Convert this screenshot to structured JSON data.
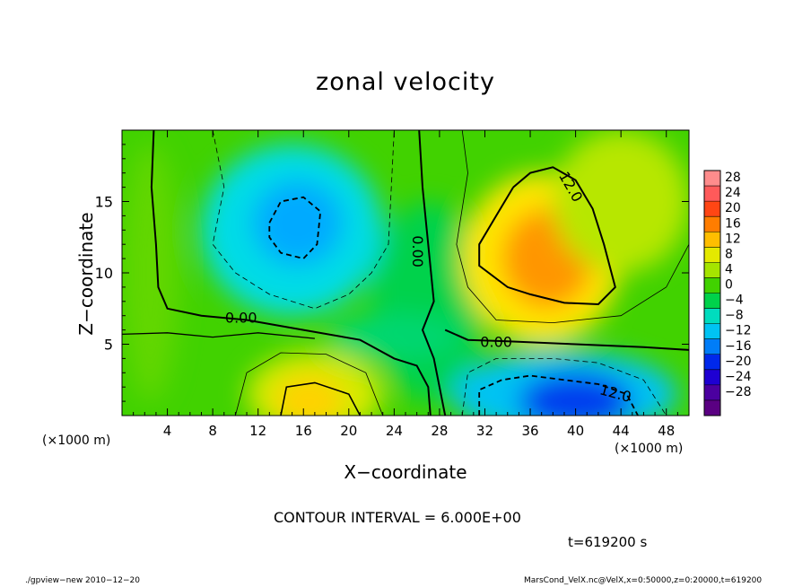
{
  "chart_data": {
    "type": "heatmap",
    "title": "zonal velocity",
    "xlabel": "X−coordinate",
    "ylabel": "Z−coordinate",
    "x_unit_label": "(×1000 m)",
    "xlim": [
      0,
      50
    ],
    "ylim": [
      0,
      20
    ],
    "x_ticks": [
      4,
      8,
      12,
      16,
      20,
      24,
      28,
      32,
      36,
      40,
      44,
      48
    ],
    "y_ticks": [
      5,
      10,
      15
    ],
    "colorbar": {
      "levels": [
        28,
        24,
        20,
        16,
        12,
        8,
        4,
        0,
        -4,
        -8,
        -12,
        -16,
        -20,
        -24,
        -28
      ],
      "labels": [
        "28",
        "24",
        "20",
        "16",
        "12",
        "8",
        "4",
        "0",
        "−4",
        "−8",
        "−12",
        "−16",
        "−20",
        "−24",
        "−28"
      ]
    },
    "contour_labels": [
      {
        "text": "0.00",
        "x": 10.5,
        "z": 6.8
      },
      {
        "text": "0.00",
        "x": 26.0,
        "z": 11.5,
        "rotate": 90
      },
      {
        "text": "0.00",
        "x": 33.0,
        "z": 5.1
      },
      {
        "text": "12.0",
        "x": 39.5,
        "z": 16.0,
        "rotate": 60
      },
      {
        "text": "12.0",
        "x": 43.5,
        "z": 1.5,
        "rotate": 15
      }
    ],
    "features": [
      {
        "kind": "min",
        "x": 15.5,
        "z": 13.5,
        "value": -13
      },
      {
        "kind": "max",
        "x": 37.5,
        "z": 11.0,
        "value": 17
      },
      {
        "kind": "min",
        "x": 39.5,
        "z": 1.2,
        "value": -18
      },
      {
        "kind": "max",
        "x": 16.5,
        "z": 1.0,
        "value": 13
      }
    ],
    "contour_interval": "CONTOUR INTERVAL = 6.000E+00",
    "time": "t=619200 s"
  },
  "footer": {
    "left": "./gpview−new   2010−12−20",
    "right": "MarsCond_VelX.nc@VelX,x=0:50000,z=0:20000,t=619200"
  }
}
